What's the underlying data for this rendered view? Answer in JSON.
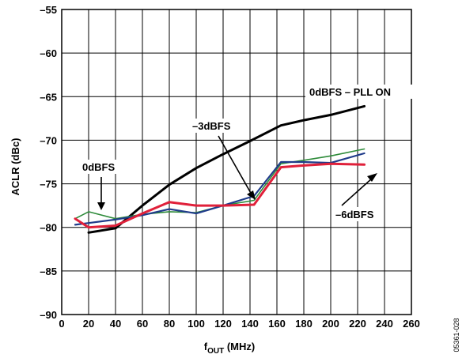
{
  "chart_data": {
    "type": "line",
    "xlabel": "f",
    "xlabel_sub": "OUT",
    "xlabel_unit": " (MHz)",
    "ylabel": "ACLR (dBc)",
    "xlim": [
      0,
      260
    ],
    "ylim": [
      -90,
      -55
    ],
    "xticks": [
      0,
      20,
      40,
      60,
      80,
      100,
      120,
      140,
      160,
      180,
      200,
      220,
      240,
      260
    ],
    "yticks": [
      -90,
      -85,
      -80,
      -75,
      -70,
      -65,
      -60,
      -55
    ],
    "ytick_labels": [
      "–90",
      "–85",
      "–80",
      "–75",
      "–70",
      "–65",
      "–60",
      "–55"
    ],
    "grid": true,
    "series": [
      {
        "name": "0dBFS – PLL ON",
        "color": "#000000",
        "width": 3,
        "x": [
          20,
          40,
          60,
          80,
          100,
          120,
          140,
          163,
          180,
          200,
          225
        ],
        "y": [
          -80.6,
          -80.1,
          -77.5,
          -75.1,
          -73.2,
          -71.6,
          -70.1,
          -68.3,
          -67.7,
          -67.1,
          -66.1
        ]
      },
      {
        "name": "0dBFS",
        "color": "#2e8b3a",
        "width": 1.6,
        "x": [
          10,
          20,
          40,
          60,
          80,
          100,
          120,
          143,
          163,
          180,
          200,
          225
        ],
        "y": [
          -79.0,
          -78.2,
          -79.0,
          -78.5,
          -78.2,
          -78.3,
          -77.5,
          -76.9,
          -72.7,
          -72.3,
          -71.8,
          -71.0
        ]
      },
      {
        "name": "–3dBFS",
        "color": "#1f3b8a",
        "width": 2.2,
        "x": [
          10,
          20,
          40,
          60,
          80,
          100,
          120,
          143,
          163,
          180,
          200,
          225
        ],
        "y": [
          -79.7,
          -79.5,
          -79.1,
          -78.6,
          -77.9,
          -78.4,
          -77.5,
          -76.4,
          -72.5,
          -72.5,
          -72.6,
          -71.5
        ]
      },
      {
        "name": "–6dBFS",
        "color": "#e0203a",
        "width": 3,
        "x": [
          10,
          20,
          40,
          60,
          80,
          100,
          120,
          143,
          163,
          180,
          200,
          225
        ],
        "y": [
          -79.0,
          -80.0,
          -79.8,
          -78.4,
          -77.1,
          -77.5,
          -77.5,
          -77.4,
          -73.1,
          -72.9,
          -72.7,
          -72.8
        ]
      }
    ],
    "annotations": [
      {
        "text": "0dBFS – PLL ON"
      },
      {
        "text": "–3dBFS"
      },
      {
        "text": "0dBFS"
      },
      {
        "text": "–6dBFS"
      }
    ],
    "figure_id": "05361-028"
  }
}
